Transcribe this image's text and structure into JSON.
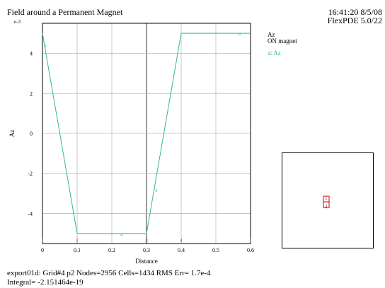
{
  "header": {
    "title": "Field around a Permanent Magnet",
    "time": "16:41:20 8/5/08",
    "version": "FlexPDE 5.0/22"
  },
  "side": {
    "variable": "Az",
    "state": "ON magnet",
    "legend": "a: Az"
  },
  "footer": {
    "line1": "export01d:  Grid#4  p2  Nodes=2956 Cells=1434 RMS Err= 1.7e-4",
    "line2": "Integral= -2.151464e-19"
  },
  "colors": {
    "series": "#2fb6a0",
    "markers": "#ff2a2a",
    "grid": "#bdbdbd",
    "axis": "#000000"
  },
  "chart_data": {
    "type": "line",
    "xlabel": "Distance",
    "ylabel": "Az",
    "y_multiplier_label": "e-3",
    "xlim": [
      0,
      0.6
    ],
    "ylim": [
      -5.5,
      5.5
    ],
    "grid": true,
    "x_ticks": [
      0,
      0.1,
      0.2,
      0.3,
      0.4,
      0.5,
      0.6
    ],
    "x_tick_labels": [
      "0",
      "0.1",
      "0.2",
      "0.3",
      "0.4",
      "0.5",
      "0.6"
    ],
    "y_ticks": [
      4,
      2,
      0,
      -2,
      -4
    ],
    "y_tick_labels": [
      "4",
      "2",
      "0",
      "-2",
      "-4"
    ],
    "series": [
      {
        "label": "a",
        "x": [
          0,
          0.1,
          0.3,
          0.4,
          0.6
        ],
        "y": [
          5.0,
          -5.0,
          -5.0,
          5.0,
          5.0
        ],
        "point_labels": [
          {
            "x": 0.005,
            "y": 4.4,
            "text": "a"
          },
          {
            "x": 0.225,
            "y": -5.0,
            "text": "a"
          },
          {
            "x": 0.325,
            "y": -2.8,
            "text": "a"
          },
          {
            "x": 0.565,
            "y": 5.0,
            "text": "a"
          }
        ]
      }
    ],
    "region_markers": [
      {
        "x": 0,
        "text": "1"
      },
      {
        "x": 0.1,
        "text": "2"
      },
      {
        "x": 0.3,
        "text": "3"
      },
      {
        "x": 0.4,
        "text": "4"
      },
      {
        "x": 0.6,
        "text": "1"
      }
    ]
  },
  "inset": {
    "labels": [
      "1",
      "2"
    ]
  }
}
